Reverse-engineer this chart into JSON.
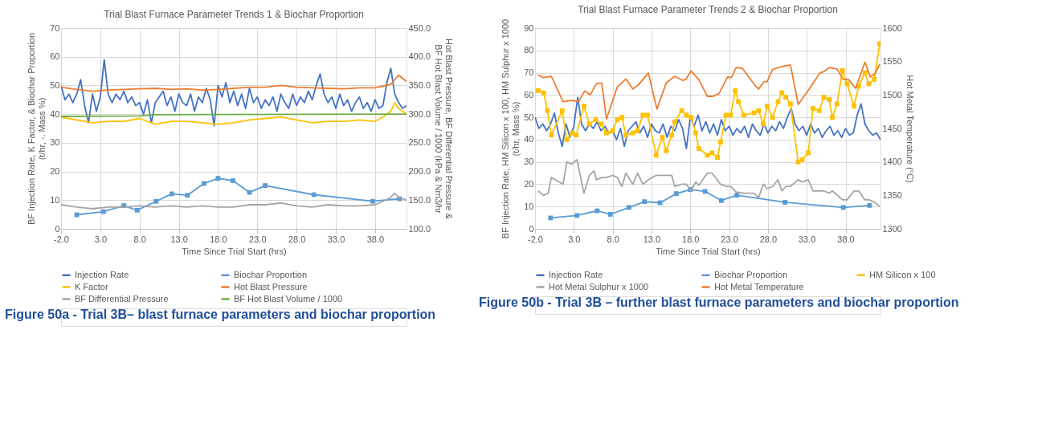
{
  "chart_data": [
    {
      "type": "line",
      "title": "Trial Blast Furnace Parameter Trends 1 & Biochar Proportion",
      "xlabel": "Time Since Trial Start (hrs)",
      "ylabel": "BF Injection Rate, K Factor, & Biochar Proportion\n(t/hr, -. Mass %)",
      "y2label": "Hot Blast Pressure, BF Differential Pressure &\nBF Hot Blast Volume / 1000 (kPa & Nm3/hr",
      "annotations": [
        "Figure 50a - Trial 3B– blast furnace parameters and biochar proportion"
      ],
      "xlim": [
        -2,
        42
      ],
      "xticks": [
        {
          "value": -2,
          "label": "-2.0"
        },
        {
          "value": 3,
          "label": "3.0"
        },
        {
          "value": 8,
          "label": "8.0"
        },
        {
          "value": 13,
          "label": "13.0"
        },
        {
          "value": 18,
          "label": "18.0"
        },
        {
          "value": 23,
          "label": "23.0"
        },
        {
          "value": 28,
          "label": "28.0"
        },
        {
          "value": 33,
          "label": "33.0"
        },
        {
          "value": 38,
          "label": "38.0"
        }
      ],
      "ylim": [
        0,
        70
      ],
      "yticks": [
        0,
        10,
        20,
        30,
        40,
        50,
        60,
        70
      ],
      "y2lim": [
        100,
        450
      ],
      "y2ticks": [
        {
          "value": 100,
          "label": "100.0"
        },
        {
          "value": 150,
          "label": "150.0"
        },
        {
          "value": 200,
          "label": "200.0"
        },
        {
          "value": 250,
          "label": "250.0"
        },
        {
          "value": 300,
          "label": "300.0"
        },
        {
          "value": 350,
          "label": "350.0"
        },
        {
          "value": 400,
          "label": "400.0"
        },
        {
          "value": 450,
          "label": "450.0"
        }
      ],
      "grid": true,
      "legend": "bottom",
      "line_style": "solid",
      "series": [
        {
          "name": "Injection Rate",
          "color": "#4472c4",
          "x": [
            -2,
            -1.5,
            -1,
            -0.5,
            0,
            0.5,
            1,
            1.5,
            2,
            2.5,
            3,
            3.5,
            4,
            4.5,
            5,
            5.5,
            6,
            6.5,
            7,
            7.5,
            8,
            8.5,
            9,
            9.5,
            10,
            10.5,
            11,
            11.5,
            12,
            12.5,
            13,
            13.5,
            14,
            14.5,
            15,
            15.5,
            16,
            16.5,
            17,
            17.5,
            18,
            18.5,
            19,
            19.5,
            20,
            20.5,
            21,
            21.5,
            22,
            22.5,
            23,
            23.5,
            24,
            24.5,
            25,
            25.5,
            26,
            26.5,
            27,
            27.5,
            28,
            28.5,
            29,
            29.5,
            30,
            30.5,
            31,
            31.5,
            32,
            32.5,
            33,
            33.5,
            34,
            34.5,
            35,
            35.5,
            36,
            36.5,
            37,
            37.5,
            38,
            38.5,
            39,
            39.5,
            40,
            40.5,
            41,
            41.5,
            42
          ],
          "values": [
            50,
            45,
            47,
            44,
            47,
            52,
            43,
            37,
            47,
            41,
            46,
            59,
            47,
            44,
            47,
            45,
            48,
            44,
            46,
            43,
            44,
            40,
            45,
            37,
            44,
            46,
            48,
            43,
            46,
            41,
            47,
            44,
            43,
            47,
            41,
            46,
            44,
            49,
            45,
            36,
            50,
            46,
            51,
            44,
            48,
            43,
            47,
            42,
            49,
            44,
            46,
            42,
            45,
            43,
            46,
            41,
            47,
            44,
            42,
            47,
            43,
            46,
            44,
            48,
            45,
            50,
            54,
            47,
            44,
            46,
            42,
            47,
            43,
            45,
            41,
            44,
            46,
            42,
            44,
            41,
            45,
            42,
            43,
            51,
            56,
            47,
            44,
            42,
            43
          ]
        },
        {
          "name": "Biochar Proportion",
          "color": "#5b9bd5",
          "marker": "square",
          "x": [
            0,
            3.4,
            6,
            7.7,
            10.1,
            12.1,
            14.1,
            16.2,
            18,
            19.9,
            22,
            24,
            30.2,
            37.7,
            41.1
          ],
          "values": [
            4.9,
            6,
            8.1,
            6.5,
            9.6,
            12.2,
            11.7,
            15.8,
            17.6,
            16.8,
            12.7,
            15.1,
            11.9,
            9.6,
            10.5
          ]
        },
        {
          "name": "K Factor",
          "color": "#ffc000",
          "x": [
            -2,
            0,
            2,
            4,
            6,
            8,
            10,
            12,
            14,
            16,
            18,
            20,
            22,
            24,
            26,
            28,
            30,
            32,
            34,
            36,
            38,
            39,
            40,
            40.5,
            41,
            42
          ],
          "values": [
            39,
            38,
            37,
            37.5,
            37.5,
            38.5,
            36.5,
            37.5,
            37.5,
            37,
            36.5,
            37,
            38,
            38.5,
            39,
            38,
            37,
            37.5,
            37.5,
            38,
            37.5,
            39,
            41,
            44,
            42,
            40
          ]
        },
        {
          "name": "Hot Blast Pressure",
          "color": "#ed7d31",
          "axis": "y2",
          "x": [
            -2,
            0,
            2,
            4,
            6,
            8,
            10,
            12,
            14,
            16,
            18,
            20,
            22,
            24,
            26,
            28,
            30,
            32,
            34,
            36,
            38,
            40,
            41,
            42
          ],
          "values": [
            347,
            343,
            340,
            342,
            343,
            344,
            345,
            343,
            344,
            342,
            343,
            345,
            347,
            347,
            350,
            347,
            346,
            345,
            344,
            346,
            346,
            352,
            368,
            357
          ]
        },
        {
          "name": "BF Differential Pressure",
          "color": "#a5a5a5",
          "axis": "y2",
          "x": [
            -2,
            0,
            2,
            4,
            6,
            8,
            10,
            12,
            14,
            16,
            18,
            20,
            22,
            24,
            26,
            28,
            30,
            32,
            34,
            36,
            38,
            39,
            40,
            40.5,
            41,
            42
          ],
          "values": [
            142,
            138,
            135,
            138,
            138,
            140,
            138,
            140,
            138,
            140,
            138,
            138,
            142,
            142,
            145,
            140,
            138,
            142,
            140,
            140,
            142,
            148,
            155,
            162,
            155,
            150
          ]
        },
        {
          "name": "BF Hot Blast Volume / 1000",
          "color": "#70ad47",
          "axis": "y2",
          "x": [
            -2,
            8,
            10,
            42
          ],
          "values": [
            296,
            297,
            299,
            300
          ]
        }
      ]
    },
    {
      "type": "line",
      "title": "Trial Blast Furnace Parameter Trends 2 & Biochar Proportion",
      "xlabel": "Time Since Trial Start (hrs)",
      "ylabel": "BF Injection Rate, HM Silicon x 100, HM Sulphur x 1000\n(t/hr, Mass %)",
      "y2label": "Hot Metal Temperature (°C)",
      "annotations": [
        "Figure 50b - Trial 3B – further blast furnace parameters and biochar proportion"
      ],
      "xlim": [
        -2,
        42.5
      ],
      "xticks": [
        {
          "value": -2,
          "label": "-2.0"
        },
        {
          "value": 3,
          "label": "3.0"
        },
        {
          "value": 8,
          "label": "8.0"
        },
        {
          "value": 13,
          "label": "13.0"
        },
        {
          "value": 18,
          "label": "18.0"
        },
        {
          "value": 23,
          "label": "23.0"
        },
        {
          "value": 28,
          "label": "28.0"
        },
        {
          "value": 33,
          "label": "33.0"
        },
        {
          "value": 38,
          "label": "38.0"
        }
      ],
      "ylim": [
        0,
        90
      ],
      "yticks": [
        0,
        10,
        20,
        30,
        40,
        50,
        60,
        70,
        80,
        90
      ],
      "y2lim": [
        1300,
        1600
      ],
      "y2ticks": [
        1300,
        1350,
        1400,
        1450,
        1500,
        1550,
        1600
      ],
      "grid": true,
      "legend": "bottom",
      "line_style": "solid",
      "series": [
        {
          "name": "Injection Rate",
          "color": "#4472c4",
          "x": [
            -2,
            -1.5,
            -1,
            -0.5,
            0,
            0.5,
            1,
            1.5,
            2,
            2.5,
            3,
            3.5,
            4,
            4.5,
            5,
            5.5,
            6,
            6.5,
            7,
            7.5,
            8,
            8.5,
            9,
            9.5,
            10,
            10.5,
            11,
            11.5,
            12,
            12.5,
            13,
            13.5,
            14,
            14.5,
            15,
            15.5,
            16,
            16.5,
            17,
            17.5,
            18,
            18.5,
            19,
            19.5,
            20,
            20.5,
            21,
            21.5,
            22,
            22.5,
            23,
            23.5,
            24,
            24.5,
            25,
            25.5,
            26,
            26.5,
            27,
            27.5,
            28,
            28.5,
            29,
            29.5,
            30,
            30.5,
            31,
            31.5,
            32,
            32.5,
            33,
            33.5,
            34,
            34.5,
            35,
            35.5,
            36,
            36.5,
            37,
            37.5,
            38,
            38.5,
            39,
            39.5,
            40,
            40.5,
            41,
            41.5,
            42,
            42.5
          ],
          "values": [
            50,
            45,
            47,
            44,
            47,
            52,
            43,
            37,
            47,
            41,
            46,
            59,
            47,
            44,
            47,
            45,
            48,
            44,
            46,
            43,
            44,
            40,
            45,
            37,
            44,
            46,
            48,
            43,
            46,
            41,
            47,
            44,
            43,
            47,
            41,
            46,
            44,
            49,
            45,
            36,
            50,
            46,
            51,
            44,
            48,
            43,
            47,
            42,
            49,
            44,
            46,
            42,
            45,
            43,
            46,
            41,
            47,
            44,
            42,
            47,
            43,
            46,
            44,
            48,
            45,
            50,
            54,
            47,
            44,
            46,
            42,
            47,
            43,
            45,
            41,
            44,
            46,
            42,
            44,
            41,
            45,
            42,
            43,
            51,
            56,
            47,
            44,
            42,
            43,
            40
          ]
        },
        {
          "name": "Biochar Proportion",
          "color": "#5b9bd5",
          "marker": "square",
          "x": [
            0,
            3.4,
            6,
            7.7,
            10.1,
            12.1,
            14.1,
            16.2,
            18,
            19.9,
            22,
            24,
            30.2,
            37.7,
            41.1
          ],
          "values": [
            4.9,
            6,
            8.1,
            6.5,
            9.6,
            12.2,
            11.7,
            15.8,
            17.6,
            16.8,
            12.7,
            15.1,
            11.9,
            9.6,
            10.5
          ]
        },
        {
          "name": "HM Silicon x 100",
          "color": "#ffc000",
          "marker": "square",
          "x": [
            -1.6,
            -0.9,
            -0.4,
            0.1,
            1.5,
            2.1,
            2.8,
            3.3,
            4.3,
            5,
            5.8,
            6.5,
            7.2,
            8,
            8.6,
            9.2,
            9.7,
            10.6,
            11.2,
            11.9,
            12.5,
            13.6,
            14.4,
            14.9,
            15.6,
            16,
            16.9,
            17.5,
            18.1,
            18.7,
            19.1,
            20.2,
            20.8,
            21.5,
            21.9,
            22.6,
            23.2,
            23.8,
            24.2,
            24.9,
            26.2,
            26.8,
            27.4,
            27.9,
            28.6,
            29.3,
            29.8,
            30.3,
            30.9,
            31.9,
            32.4,
            33.2,
            33.8,
            34.6,
            35.2,
            35.9,
            36.3,
            36.9,
            37.6,
            38.2,
            39.1,
            39.7,
            40.5,
            41,
            41.7,
            42.4
          ],
          "values": [
            62,
            61,
            53,
            42,
            53,
            40,
            43,
            42,
            55,
            47,
            49,
            47,
            43,
            44,
            49,
            50,
            42,
            43,
            44,
            51,
            51,
            33,
            41,
            35,
            42,
            48,
            53,
            51,
            50,
            43,
            36,
            33,
            34,
            32,
            39,
            51,
            51,
            62,
            57,
            51,
            52,
            53,
            47,
            55,
            50,
            57,
            61,
            59,
            56,
            30,
            31,
            34,
            54,
            53,
            59,
            58,
            50,
            56,
            71,
            65,
            55,
            64,
            70,
            65,
            67,
            83
          ]
        },
        {
          "name": "Hot Metal Sulphur x 1000",
          "color": "#a5a5a5",
          "x": [
            -1.6,
            -0.9,
            -0.3,
            0.1,
            1.6,
            2.1,
            2.7,
            3.4,
            4.3,
            5,
            5.6,
            5.9,
            6.6,
            7.2,
            8,
            8.6,
            9.2,
            9.7,
            10.6,
            11.2,
            11.9,
            12.6,
            13.6,
            15.6,
            16,
            16.9,
            17.5,
            18.1,
            18.7,
            19.1,
            20.2,
            20.8,
            21.9,
            22.6,
            23.2,
            23.9,
            24.9,
            26.2,
            26.8,
            27.4,
            27.9,
            28.6,
            29.3,
            29.8,
            30.3,
            30.9,
            31.9,
            32.4,
            33.2,
            33.8,
            35.2,
            35.9,
            36.3,
            37.6,
            38.2,
            39.1,
            39.7,
            40.5,
            41,
            41.7,
            42.4
          ],
          "values": [
            17,
            15,
            16,
            23,
            20,
            30,
            29,
            31,
            16,
            24,
            26,
            22,
            23,
            23,
            24,
            23,
            19,
            25,
            20,
            25,
            20,
            22,
            24,
            24,
            19,
            20,
            20,
            17,
            21,
            19.5,
            25,
            25,
            20,
            19,
            19,
            16.5,
            16,
            16,
            14,
            20,
            18,
            19,
            22,
            17,
            19,
            19,
            22,
            21,
            22,
            17,
            17,
            16,
            17,
            13,
            13,
            17,
            17,
            13,
            13,
            12,
            10
          ]
        },
        {
          "name": "Hot Metal Temperature",
          "color": "#ed7d31",
          "axis": "y2",
          "x": [
            -1.6,
            -0.9,
            0.1,
            1.6,
            2.7,
            3.6,
            4.4,
            5.1,
            5.9,
            6.6,
            7.2,
            8.6,
            9.7,
            10.6,
            11.3,
            12.6,
            13.7,
            14.9,
            16,
            17,
            17.4,
            18.1,
            19.1,
            20.2,
            20.9,
            21.7,
            22.8,
            23.3,
            23.9,
            24.7,
            26.3,
            26.8,
            27.5,
            27.9,
            28.6,
            29.6,
            30.1,
            30.9,
            31.9,
            33.2,
            34.7,
            35.2,
            35.9,
            36.9,
            37.7,
            38.4,
            39.3,
            40.5,
            41.2,
            41.8,
            42.4
          ],
          "values": [
            1530,
            1526,
            1528,
            1490,
            1492,
            1490,
            1506,
            1500,
            1517,
            1518,
            1464,
            1512,
            1524,
            1509,
            1515,
            1533,
            1479,
            1518,
            1528,
            1522,
            1523,
            1536,
            1523,
            1498,
            1498,
            1502,
            1527,
            1526,
            1541,
            1540,
            1515,
            1509,
            1520,
            1520,
            1538,
            1542,
            1543,
            1545,
            1486,
            1507,
            1533,
            1535,
            1541,
            1539,
            1523,
            1523,
            1510,
            1549,
            1527,
            1532,
            1546
          ]
        }
      ]
    }
  ]
}
